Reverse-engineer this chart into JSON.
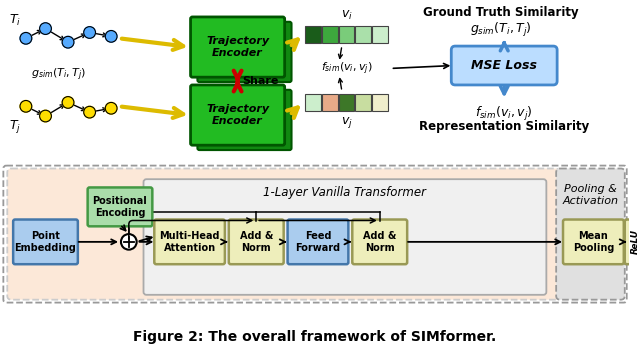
{
  "title": "Figure 2: The overall framework of SIMformer.",
  "bg_color": "#ffffff",
  "top": {
    "Ti_label": "$T_i$",
    "Tj_label": "$T_j$",
    "gsim_label": "$g_{sim}(T_i,T_j)$",
    "vi_label": "$v_i$",
    "vj_label": "$v_j$",
    "fsim_label": "$f_{sim}(v_i,v_j)$",
    "share_label": "Share",
    "encoder_label": "Trajectory\nEncoder",
    "gt_sim_title": "Ground Truth Similarity",
    "gsim_eq": "$g_{sim}(T_i,T_j)$",
    "mse_label": "MSE Loss",
    "rep_sim_title": "Representation Similarity",
    "fsim_eq": "$f_{sim}(v_i,v_j)$",
    "dot_color_Ti": "#55aaff",
    "dot_color_Tj": "#ffdd00",
    "enc_front_color": "#22bb22",
    "enc_back_color": "#118811",
    "enc_border_color": "#005500",
    "mse_box_color": "#bbddff",
    "mse_border_color": "#4488cc",
    "vi_colors": [
      "#1a5c1a",
      "#3da83d",
      "#7acc7a",
      "#aae0aa",
      "#cceecc"
    ],
    "vj_colors": [
      "#cceecc",
      "#e8aa88",
      "#3d7728",
      "#c8dda0",
      "#f0eecc"
    ]
  },
  "bot": {
    "transformer_bg": "#fce8d8",
    "transformer_label": "1-Layer Vanilla Transformer",
    "pooling_label": "Pooling &\nActivation",
    "inner_bg": "#f0f0f0",
    "boxes": [
      {
        "label": "Point\nEmbedding",
        "color": "#aaccee",
        "border": "#4477aa"
      },
      {
        "label": "Positional\nEncoding",
        "color": "#aaddaa",
        "border": "#449944"
      },
      {
        "label": "Multi-Head\nAttention",
        "color": "#eeeebb",
        "border": "#999955"
      },
      {
        "label": "Add &\nNorm",
        "color": "#eeeebb",
        "border": "#999955"
      },
      {
        "label": "Feed\nForward",
        "color": "#aaccee",
        "border": "#4477aa"
      },
      {
        "label": "Add &\nNorm",
        "color": "#eeeebb",
        "border": "#999955"
      },
      {
        "label": "Mean\nPooling",
        "color": "#eeeebb",
        "border": "#999955"
      },
      {
        "label": "ReLU",
        "color": "#eeeebb",
        "border": "#999955"
      }
    ]
  }
}
